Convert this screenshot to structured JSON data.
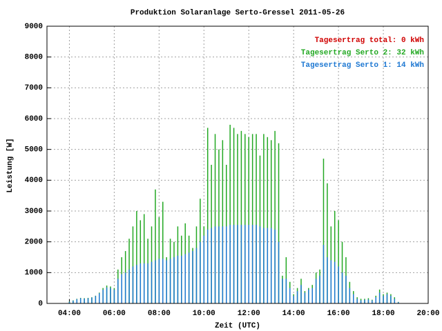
{
  "chart_data": {
    "type": "bar",
    "title": "Produktion Solaranlage Serto-Gressel 2011-05-26",
    "x_label": "Zeit (UTC)",
    "y_label": "Leistung [W]",
    "annotations": [
      {
        "text": "Tagesertrag total: 0 kWh",
        "color": "#d00000"
      }
    ],
    "xlim": [
      180,
      1200
    ],
    "xticks": [
      {
        "value": 240,
        "label": "04:00"
      },
      {
        "value": 360,
        "label": "06:00"
      },
      {
        "value": 480,
        "label": "08:00"
      },
      {
        "value": 600,
        "label": "10:00"
      },
      {
        "value": 720,
        "label": "12:00"
      },
      {
        "value": 840,
        "label": "14:00"
      },
      {
        "value": 960,
        "label": "16:00"
      },
      {
        "value": 1080,
        "label": "18:00"
      },
      {
        "value": 1200,
        "label": "20:00"
      }
    ],
    "ylim": [
      0,
      9000
    ],
    "yticks": [
      0,
      1000,
      2000,
      3000,
      4000,
      5000,
      6000,
      7000,
      8000,
      9000
    ],
    "grid": true,
    "x": [
      230,
      240,
      250,
      260,
      270,
      280,
      290,
      300,
      310,
      320,
      330,
      340,
      350,
      360,
      370,
      380,
      390,
      400,
      410,
      420,
      430,
      440,
      450,
      460,
      470,
      480,
      490,
      500,
      510,
      520,
      530,
      540,
      550,
      560,
      570,
      580,
      590,
      600,
      610,
      620,
      630,
      640,
      650,
      660,
      670,
      680,
      690,
      700,
      710,
      720,
      730,
      740,
      750,
      760,
      770,
      780,
      790,
      800,
      810,
      820,
      830,
      840,
      850,
      860,
      870,
      880,
      890,
      900,
      910,
      920,
      930,
      940,
      950,
      960,
      970,
      980,
      990,
      1000,
      1010,
      1020,
      1030,
      1040,
      1050,
      1060,
      1070,
      1080,
      1090,
      1100,
      1110,
      1120,
      1130
    ],
    "series": [
      {
        "name": "Tagesertrag Serto 2: 32 kWh",
        "color": "#22a822",
        "values": [
          0,
          60,
          100,
          150,
          180,
          170,
          180,
          200,
          250,
          350,
          500,
          580,
          550,
          500,
          1100,
          1500,
          1700,
          2100,
          2500,
          3000,
          2700,
          2900,
          2100,
          2500,
          3700,
          2800,
          3300,
          1500,
          2100,
          2000,
          2500,
          2200,
          2600,
          2200,
          1800,
          2500,
          3400,
          2500,
          5700,
          4500,
          5500,
          5000,
          5300,
          4500,
          5800,
          5700,
          5500,
          5600,
          5500,
          5400,
          5500,
          5500,
          4800,
          5500,
          5400,
          5300,
          5600,
          5200,
          900,
          1500,
          700,
          300,
          500,
          800,
          400,
          500,
          600,
          1000,
          1100,
          4700,
          3900,
          2500,
          3000,
          2700,
          2000,
          1500,
          700,
          400,
          200,
          150,
          150,
          170,
          120,
          250,
          450,
          300,
          350,
          300,
          200,
          50,
          0
        ]
      },
      {
        "name": "Tagesertrag Serto 1: 14 kWh",
        "color": "#1e78d2",
        "values": [
          0,
          50,
          90,
          140,
          170,
          160,
          170,
          190,
          240,
          330,
          450,
          520,
          500,
          450,
          800,
          950,
          1000,
          1100,
          1200,
          1250,
          1300,
          1300,
          1300,
          1350,
          1400,
          1450,
          1450,
          1400,
          1450,
          1500,
          1550,
          1550,
          1600,
          1650,
          1700,
          1800,
          2000,
          2200,
          2400,
          2450,
          2500,
          2500,
          2500,
          2500,
          2550,
          2550,
          2550,
          2550,
          2550,
          2550,
          2550,
          2550,
          2500,
          2450,
          2450,
          2450,
          2400,
          2000,
          800,
          800,
          500,
          250,
          400,
          600,
          350,
          450,
          500,
          800,
          900,
          1900,
          1500,
          1400,
          1350,
          1200,
          1000,
          900,
          500,
          300,
          150,
          100,
          120,
          130,
          100,
          200,
          350,
          250,
          300,
          250,
          150,
          40,
          0
        ]
      }
    ]
  }
}
